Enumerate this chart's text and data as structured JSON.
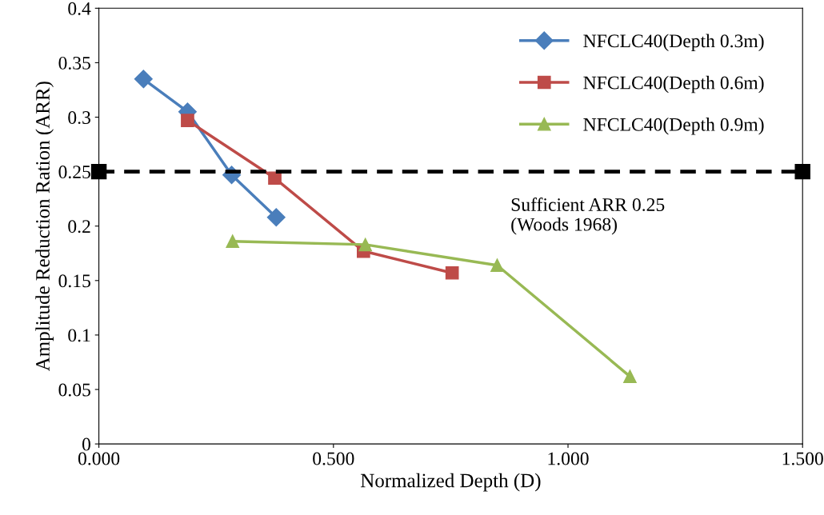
{
  "chart_data": {
    "type": "line",
    "xlabel": "Normalized Depth (D)",
    "ylabel": "Amplitude Reduction Ration (ARR)",
    "xlim": [
      0,
      1.5
    ],
    "xticks": [
      {
        "value": 0,
        "label": "0.000"
      },
      {
        "value": 0.5,
        "label": "0.500"
      },
      {
        "value": 1,
        "label": "1.000"
      },
      {
        "value": 1.5,
        "label": "1.500"
      }
    ],
    "ylim": [
      0,
      0.4
    ],
    "yticks": [
      0,
      0.05,
      0.1,
      0.15,
      0.2,
      0.25,
      0.3,
      0.35,
      0.4
    ],
    "grid": false,
    "legend": "top right",
    "series": [
      {
        "name": "NFCLC40(Depth 0.3m)",
        "color": "#4a7ebb",
        "marker": "diamond",
        "x": [
          0.095,
          0.189,
          0.283,
          0.378
        ],
        "values": [
          0.335,
          0.305,
          0.247,
          0.208
        ]
      },
      {
        "name": "NFCLC40(Depth 0.6m)",
        "color": "#be4b48",
        "marker": "square",
        "x": [
          0.189,
          0.375,
          0.564,
          0.753
        ],
        "values": [
          0.297,
          0.244,
          0.177,
          0.157
        ]
      },
      {
        "name": "NFCLC40(Depth 0.9m)",
        "color": "#98b954",
        "marker": "triangle",
        "x": [
          0.285,
          0.568,
          0.849,
          1.132
        ],
        "values": [
          0.186,
          0.183,
          0.164,
          0.062
        ]
      },
      {
        "color": "#000000",
        "marker": "square",
        "line_style": "dashed",
        "x": [
          0,
          1.5
        ],
        "values": [
          0.25,
          0.25
        ]
      }
    ],
    "annotations": [
      "Sufficient ARR 0.25\n(Woods 1968)"
    ]
  }
}
